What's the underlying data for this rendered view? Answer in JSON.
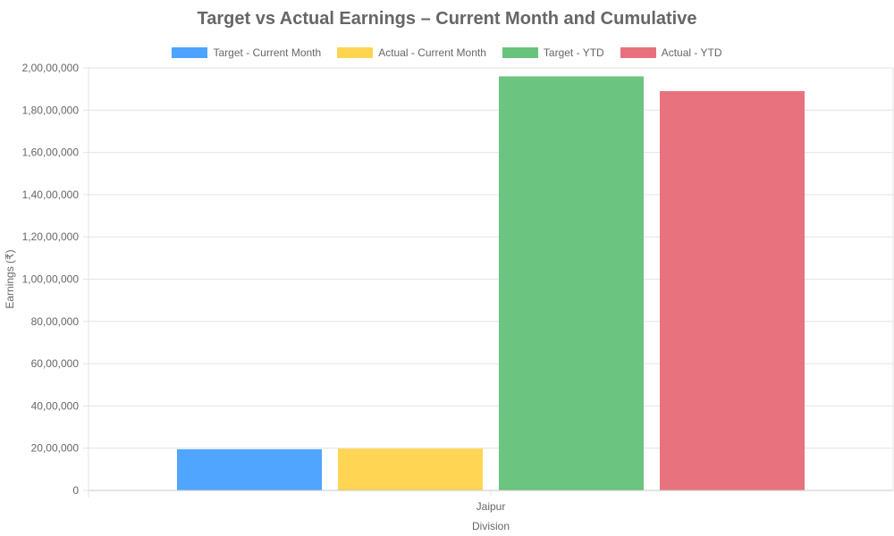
{
  "chart_data": {
    "type": "bar",
    "title": "Target vs Actual Earnings – Current Month and Cumulative",
    "xlabel": "Division",
    "ylabel": "Earnings (₹)",
    "categories": [
      "Jaipur"
    ],
    "ylim": [
      0,
      20000000
    ],
    "yticks": [
      0,
      2000000,
      4000000,
      6000000,
      8000000,
      10000000,
      12000000,
      14000000,
      16000000,
      18000000,
      20000000
    ],
    "ytick_labels": [
      "0",
      "20,00,000",
      "40,00,000",
      "60,00,000",
      "80,00,000",
      "1,00,00,000",
      "1,20,00,000",
      "1,40,00,000",
      "1,60,00,000",
      "1,80,00,000",
      "2,00,00,000"
    ],
    "grid": true,
    "legend_position": "top",
    "series": [
      {
        "name": "Target - Current Month",
        "values": [
          1950000
        ],
        "color": "#4da3ff"
      },
      {
        "name": "Actual - Current Month",
        "values": [
          1980000
        ],
        "color": "#ffd450"
      },
      {
        "name": "Target - YTD",
        "values": [
          19600000
        ],
        "color": "#68c37c"
      },
      {
        "name": "Actual - YTD",
        "values": [
          18900000
        ],
        "color": "#e8707c"
      }
    ]
  }
}
